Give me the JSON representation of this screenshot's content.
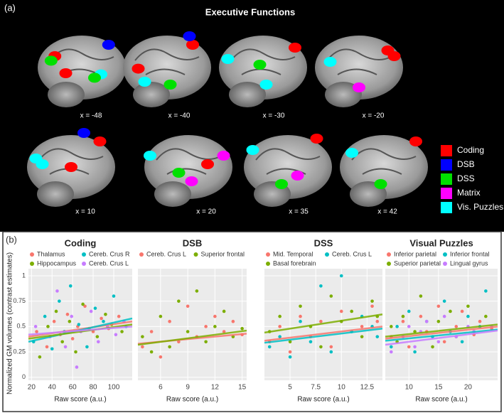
{
  "figure": {
    "panel_a": "(a)",
    "panel_b": "(b)",
    "title": "Executive Functions",
    "slices": [
      "x = -48",
      "x = -40",
      "x = -30",
      "x = -20",
      "x = 10",
      "x = 20",
      "x = 35",
      "x = 42"
    ],
    "legend": [
      {
        "name": "Coding",
        "color": "#ff0000"
      },
      {
        "name": "DSB",
        "color": "#0000ff"
      },
      {
        "name": "DSS",
        "color": "#00e000"
      },
      {
        "name": "Matrix",
        "color": "#ff00ff"
      },
      {
        "name": "Vis. Puzzles",
        "color": "#00ffff"
      }
    ],
    "ylabel": "Normalized GM volumes (contrast estimates)"
  },
  "chart_data": [
    {
      "type": "scatter",
      "title": "Coding",
      "xlabel": "Raw score (a.u.)",
      "xlim": [
        17,
        118
      ],
      "xticks": [
        20,
        40,
        60,
        80,
        100
      ],
      "ylim": [
        -0.03,
        1.07
      ],
      "yticks": [
        0,
        0.25,
        0.5,
        0.75,
        1
      ],
      "grid": true,
      "series": [
        {
          "name": "Thalamus",
          "color": "#f8766d",
          "x": [
            25,
            35,
            42,
            48,
            55,
            60,
            65,
            72,
            80,
            88,
            95,
            105
          ],
          "values": [
            0.45,
            0.3,
            0.55,
            0.42,
            0.62,
            0.38,
            0.5,
            0.7,
            0.45,
            0.58,
            0.48,
            0.6
          ],
          "trend": [
            0.4,
            0.55
          ]
        },
        {
          "name": "Cereb. Crus R",
          "color": "#00bfc4",
          "x": [
            22,
            33,
            40,
            47,
            52,
            58,
            66,
            74,
            82,
            90,
            100,
            112
          ],
          "values": [
            0.35,
            0.6,
            0.28,
            0.75,
            0.45,
            0.9,
            0.52,
            0.3,
            0.68,
            0.55,
            0.8,
            0.5
          ],
          "trend": [
            0.35,
            0.58
          ]
        },
        {
          "name": "Hippocampus",
          "color": "#7cae00",
          "x": [
            28,
            36,
            44,
            50,
            57,
            63,
            70,
            76,
            84,
            92,
            98,
            108
          ],
          "values": [
            0.2,
            0.5,
            0.65,
            0.35,
            0.55,
            0.25,
            0.72,
            0.48,
            0.4,
            0.62,
            0.52,
            0.45
          ],
          "trend": [
            0.38,
            0.52
          ]
        },
        {
          "name": "Cereb. Crus L",
          "color": "#c77cff",
          "x": [
            24,
            38,
            45,
            53,
            59,
            64,
            68,
            78,
            85,
            94,
            102,
            110
          ],
          "values": [
            0.5,
            0.4,
            0.85,
            0.3,
            0.6,
            0.1,
            0.45,
            0.65,
            0.35,
            0.5,
            0.42,
            0.55
          ],
          "trend": [
            0.42,
            0.5
          ]
        }
      ]
    },
    {
      "type": "scatter",
      "title": "DSB",
      "xlabel": "Raw score (a.u.)",
      "xlim": [
        3.5,
        15.5
      ],
      "xticks": [
        6,
        9,
        12,
        15
      ],
      "ylim": [
        -0.03,
        1.07
      ],
      "yticks": [
        0,
        0.25,
        0.5,
        0.75,
        1
      ],
      "grid": true,
      "series": [
        {
          "name": "Cereb. Crus L",
          "color": "#f8766d",
          "x": [
            4,
            5,
            6,
            7,
            8,
            9,
            10,
            11,
            12,
            13,
            14,
            15
          ],
          "values": [
            0.3,
            0.45,
            0.2,
            0.55,
            0.35,
            0.7,
            0.4,
            0.5,
            0.6,
            0.45,
            0.55,
            0.42
          ],
          "trend": [
            0.33,
            0.43
          ]
        },
        {
          "name": "Superior frontal",
          "color": "#7cae00",
          "x": [
            4,
            5,
            6,
            7,
            8,
            9,
            10,
            11,
            12,
            13,
            14,
            15
          ],
          "values": [
            0.4,
            0.25,
            0.6,
            0.3,
            0.75,
            0.45,
            0.85,
            0.35,
            0.5,
            0.65,
            0.4,
            0.48
          ],
          "trend": [
            0.32,
            0.46
          ]
        }
      ]
    },
    {
      "type": "scatter",
      "title": "DSS",
      "xlabel": "Raw score (a.u.)",
      "xlim": [
        2.5,
        14
      ],
      "xticks": [
        5,
        7.5,
        10,
        12.5
      ],
      "ylim": [
        -0.03,
        1.07
      ],
      "yticks": [
        0,
        0.25,
        0.5,
        0.75,
        1
      ],
      "grid": true,
      "series": [
        {
          "name": "Mid. Temporal",
          "color": "#f8766d",
          "x": [
            3,
            4,
            5,
            6,
            7,
            8,
            9,
            10,
            11,
            12,
            13,
            13.5
          ],
          "values": [
            0.35,
            0.5,
            0.25,
            0.6,
            0.4,
            0.55,
            0.3,
            0.65,
            0.45,
            0.5,
            0.7,
            0.55
          ],
          "trend": [
            0.36,
            0.5
          ]
        },
        {
          "name": "Cereb. Crus L",
          "color": "#00bfc4",
          "x": [
            3,
            4,
            5,
            6,
            7,
            8,
            9,
            10,
            11,
            12,
            13,
            13.5
          ],
          "values": [
            0.3,
            0.4,
            0.2,
            0.55,
            0.35,
            0.9,
            0.25,
            1,
            0.45,
            0.6,
            0.5,
            0.4
          ],
          "trend": [
            0.34,
            0.48
          ]
        },
        {
          "name": "Basal forebrain",
          "color": "#7cae00",
          "x": [
            3,
            4,
            5,
            6,
            7,
            8,
            9,
            10,
            11,
            12,
            13,
            13.5
          ],
          "values": [
            0.45,
            0.6,
            0.35,
            0.7,
            0.5,
            0.3,
            0.8,
            0.55,
            0.65,
            0.4,
            0.75,
            0.6
          ],
          "trend": [
            0.44,
            0.62
          ]
        }
      ]
    },
    {
      "type": "scatter",
      "title": "Visual Puzzles",
      "xlabel": "Raw score (a.u.)",
      "xlim": [
        6,
        25
      ],
      "xticks": [
        10,
        15,
        20
      ],
      "ylim": [
        -0.03,
        1.07
      ],
      "yticks": [
        0,
        0.25,
        0.5,
        0.75,
        1
      ],
      "grid": true,
      "series": [
        {
          "name": "Inferior parietal",
          "color": "#f8766d",
          "x": [
            7,
            9,
            10,
            12,
            13,
            15,
            16,
            18,
            19,
            21,
            22,
            24
          ],
          "values": [
            0.4,
            0.55,
            0.3,
            0.6,
            0.45,
            0.7,
            0.35,
            0.5,
            0.65,
            0.42,
            0.55,
            0.48
          ],
          "trend": [
            0.38,
            0.5
          ]
        },
        {
          "name": "Inferior frontal",
          "color": "#00bfc4",
          "x": [
            7,
            8,
            10,
            11,
            13,
            14,
            16,
            17,
            19,
            20,
            22,
            23
          ],
          "values": [
            0.3,
            0.5,
            0.65,
            0.25,
            0.55,
            0.4,
            0.75,
            0.45,
            0.35,
            0.6,
            0.5,
            0.85
          ],
          "trend": [
            0.36,
            0.47
          ]
        },
        {
          "name": "Superior parietal",
          "color": "#7cae00",
          "x": [
            7,
            8,
            9,
            11,
            12,
            14,
            15,
            17,
            18,
            20,
            21,
            23
          ],
          "values": [
            0.5,
            0.35,
            0.6,
            0.45,
            0.8,
            0.3,
            0.55,
            0.65,
            0.4,
            0.7,
            0.45,
            0.6
          ],
          "trend": [
            0.4,
            0.52
          ]
        },
        {
          "name": "Lingual gyrus",
          "color": "#c77cff",
          "x": [
            7,
            9,
            10,
            11,
            12,
            13,
            15,
            16,
            18,
            20,
            21,
            24
          ],
          "values": [
            0.25,
            0.4,
            0.5,
            0.3,
            0.45,
            0.55,
            0.35,
            0.6,
            0.4,
            0.5,
            0.45,
            0.5
          ],
          "trend": [
            0.32,
            0.46
          ]
        }
      ]
    }
  ]
}
